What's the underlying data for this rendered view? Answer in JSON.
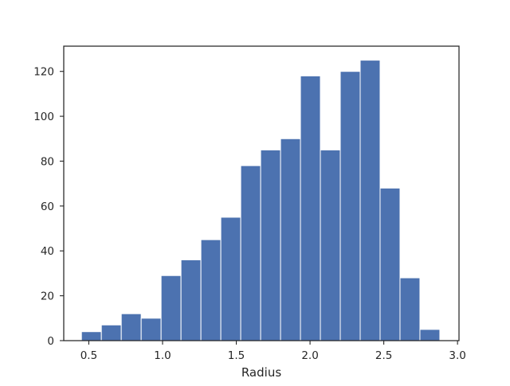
{
  "chart_data": {
    "type": "bar",
    "subtype": "histogram",
    "title": "",
    "xlabel": "Radius",
    "ylabel": "",
    "xlim": [
      0.33,
      3.01
    ],
    "ylim": [
      0,
      131.25
    ],
    "grid": false,
    "legend": "none",
    "bar_color": "#4c72b0",
    "bar_edge_color": "#ffffff",
    "axis_color": "#262626",
    "bin_edges": [
      0.45,
      0.585,
      0.72,
      0.855,
      0.99,
      1.125,
      1.26,
      1.395,
      1.53,
      1.665,
      1.8,
      1.935,
      2.07,
      2.205,
      2.34,
      2.475,
      2.61,
      2.745,
      2.88
    ],
    "counts": [
      4,
      7,
      12,
      10,
      29,
      36,
      45,
      55,
      78,
      85,
      90,
      118,
      85,
      120,
      125,
      68,
      28,
      5
    ],
    "x_ticks": [
      0.5,
      1.0,
      1.5,
      2.0,
      2.5,
      3.0
    ],
    "x_tick_labels": [
      "0.5",
      "1.0",
      "1.5",
      "2.0",
      "2.5",
      "3.0"
    ],
    "y_ticks": [
      0,
      20,
      40,
      60,
      80,
      100,
      120
    ],
    "y_tick_labels": [
      "0",
      "20",
      "40",
      "60",
      "80",
      "100",
      "120"
    ]
  }
}
